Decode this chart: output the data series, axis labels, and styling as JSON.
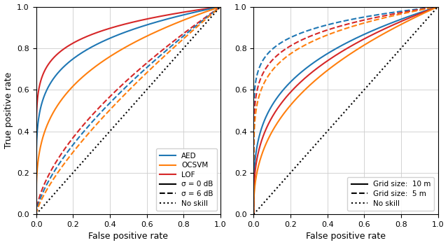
{
  "xlabel": "False positive rate",
  "ylabel": "True positive rate",
  "xlim": [
    0.0,
    1.0
  ],
  "ylim": [
    0.0,
    1.0
  ],
  "xticks": [
    0.0,
    0.2,
    0.4,
    0.6,
    0.8,
    1.0
  ],
  "yticks": [
    0.0,
    0.2,
    0.4,
    0.6,
    0.8,
    1.0
  ],
  "colors": {
    "AED": "#1f77b4",
    "OCSVM": "#ff7f0e",
    "LOF": "#d62728"
  },
  "legend1": {
    "AED": "AED",
    "OCSVM": "OCSVM",
    "LOF": "LOF",
    "solid": "σ = 0 dB",
    "dashed": "σ = 6 dB",
    "dotted": "No skill"
  },
  "legend2": {
    "solid": "Grid size:  10 m",
    "dashed": "Grid size:  5 m",
    "dotted": "No skill"
  },
  "left_curves": {
    "LOF_solid": {
      "alpha": 0.12
    },
    "AED_solid": {
      "alpha": 0.18
    },
    "OCSVM_solid": {
      "alpha": 0.3
    },
    "LOF_dashed": {
      "alpha": 0.62
    },
    "AED_dashed": {
      "alpha": 0.68
    },
    "OCSVM_dashed": {
      "alpha": 0.75
    }
  },
  "right_curves": {
    "AED_dashed": {
      "alpha": 0.1
    },
    "LOF_dashed": {
      "alpha": 0.13
    },
    "OCSVM_dashed": {
      "alpha": 0.16
    },
    "AED_solid": {
      "alpha": 0.28
    },
    "LOF_solid": {
      "alpha": 0.33
    },
    "OCSVM_solid": {
      "alpha": 0.4
    }
  }
}
